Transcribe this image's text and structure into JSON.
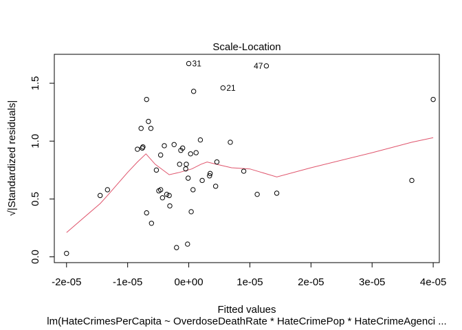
{
  "chart_data": {
    "type": "scatter",
    "title": "Scale-Location",
    "xlabel": "Fitted values",
    "subtitle": "lm(HateCrimesPerCapita ~ OverdoseDeathRate * HateCrimePop * HateCrimeAgenci ...",
    "ylabel_prefix": "√",
    "ylabel": "|Standardized residuals|",
    "xlim": [
      -2.2e-05,
      4.1e-05
    ],
    "ylim": [
      -0.05,
      1.75
    ],
    "grid": false,
    "x_ticks": [
      {
        "value": -2e-05,
        "label": "-2e-05"
      },
      {
        "value": -1e-05,
        "label": "-1e-05"
      },
      {
        "value": 0,
        "label": "0e+00"
      },
      {
        "value": 1e-05,
        "label": "1e-05"
      },
      {
        "value": 2e-05,
        "label": "2e-05"
      },
      {
        "value": 3e-05,
        "label": "3e-05"
      },
      {
        "value": 4e-05,
        "label": "4e-05"
      }
    ],
    "y_ticks": [
      {
        "value": 0.0,
        "label": "0.0"
      },
      {
        "value": 0.5,
        "label": "0.5"
      },
      {
        "value": 1.0,
        "label": "1.0"
      },
      {
        "value": 1.5,
        "label": "1.5"
      }
    ],
    "points": [
      {
        "x": -2e-05,
        "y": 0.03
      },
      {
        "x": -1.45e-05,
        "y": 0.53
      },
      {
        "x": -1.33e-05,
        "y": 0.58
      },
      {
        "x": -8.4e-06,
        "y": 0.93
      },
      {
        "x": -7.8e-06,
        "y": 1.11
      },
      {
        "x": -7.6e-06,
        "y": 0.94
      },
      {
        "x": -7.5e-06,
        "y": 0.95
      },
      {
        "x": -6.9e-06,
        "y": 1.36
      },
      {
        "x": -6.9e-06,
        "y": 0.38
      },
      {
        "x": -6.6e-06,
        "y": 1.17
      },
      {
        "x": -6.2e-06,
        "y": 1.11
      },
      {
        "x": -6.1e-06,
        "y": 0.29
      },
      {
        "x": -5.3e-06,
        "y": 0.75
      },
      {
        "x": -4.9e-06,
        "y": 0.57
      },
      {
        "x": -4.6e-06,
        "y": 0.88
      },
      {
        "x": -4.6e-06,
        "y": 0.58
      },
      {
        "x": -4.3e-06,
        "y": 0.51
      },
      {
        "x": -4e-06,
        "y": 0.96
      },
      {
        "x": -3.6e-06,
        "y": 0.54
      },
      {
        "x": -3.2e-06,
        "y": 0.53
      },
      {
        "x": -3.1e-06,
        "y": 0.44
      },
      {
        "x": -2.4e-06,
        "y": 0.97
      },
      {
        "x": -2e-06,
        "y": 0.08
      },
      {
        "x": -1.5e-06,
        "y": 0.8
      },
      {
        "x": -1.3e-06,
        "y": 0.92
      },
      {
        "x": -1e-06,
        "y": 0.94
      },
      {
        "x": -5e-07,
        "y": 0.76
      },
      {
        "x": -4e-07,
        "y": 0.8
      },
      {
        "x": -1e-07,
        "y": 0.68
      },
      {
        "x": -2e-07,
        "y": 0.11
      },
      {
        "x": 0.0,
        "y": 1.67
      },
      {
        "x": 3e-07,
        "y": 0.89
      },
      {
        "x": 4e-07,
        "y": 0.39
      },
      {
        "x": 7e-07,
        "y": 0.58
      },
      {
        "x": 8e-07,
        "y": 1.43
      },
      {
        "x": 1.2e-06,
        "y": 0.9
      },
      {
        "x": 1.9e-06,
        "y": 1.01
      },
      {
        "x": 2.2e-06,
        "y": 0.66
      },
      {
        "x": 3.4e-06,
        "y": 0.7
      },
      {
        "x": 3.5e-06,
        "y": 0.72
      },
      {
        "x": 4.4e-06,
        "y": 0.61
      },
      {
        "x": 4.6e-06,
        "y": 0.82
      },
      {
        "x": 5.6e-06,
        "y": 1.46
      },
      {
        "x": 6.8e-06,
        "y": 0.99
      },
      {
        "x": 9e-06,
        "y": 0.74
      },
      {
        "x": 1.12e-05,
        "y": 0.54
      },
      {
        "x": 1.27e-05,
        "y": 1.65
      },
      {
        "x": 1.44e-05,
        "y": 0.55
      },
      {
        "x": 3.65e-05,
        "y": 0.66
      },
      {
        "x": 4e-05,
        "y": 1.36
      }
    ],
    "labeled_points": [
      {
        "label": "31",
        "x": 0.0,
        "y": 1.67,
        "side": "right"
      },
      {
        "label": "21",
        "x": 5.6e-06,
        "y": 1.46,
        "side": "right"
      },
      {
        "label": "47",
        "x": 1.27e-05,
        "y": 1.65,
        "side": "left"
      }
    ],
    "smooth_line": {
      "color": "#DF536B",
      "x": [
        -2e-05,
        -1.45e-05,
        -1.33e-05,
        -1e-05,
        -8.4e-06,
        -7e-06,
        -5.5e-06,
        -3.2e-06,
        -1.5e-06,
        5e-07,
        2e-06,
        3e-06,
        4.5e-06,
        7e-06,
        1e-05,
        1.44e-05,
        2e-05,
        3e-05,
        3.65e-05,
        4e-05
      ],
      "y": [
        0.21,
        0.46,
        0.53,
        0.73,
        0.82,
        0.89,
        0.8,
        0.71,
        0.73,
        0.76,
        0.8,
        0.82,
        0.8,
        0.77,
        0.76,
        0.69,
        0.77,
        0.9,
        0.99,
        1.03
      ]
    }
  }
}
